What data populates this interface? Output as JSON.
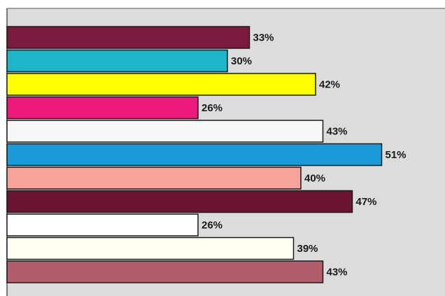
{
  "chart_data": {
    "type": "bar",
    "orientation": "horizontal",
    "values": [
      33,
      30,
      42,
      26,
      43,
      51,
      40,
      47,
      26,
      39,
      43
    ],
    "value_labels": [
      "33%",
      "30%",
      "42%",
      "26%",
      "43%",
      "51%",
      "40%",
      "47%",
      "26%",
      "39%",
      "43%"
    ],
    "colors": [
      "#7a1a3e",
      "#1fb5c9",
      "#ffff00",
      "#ec1a7d",
      "#f6f6f6",
      "#1a9bd7",
      "#f7a39b",
      "#6a1432",
      "#ffffff",
      "#fffff2",
      "#b25c6c"
    ]
  }
}
